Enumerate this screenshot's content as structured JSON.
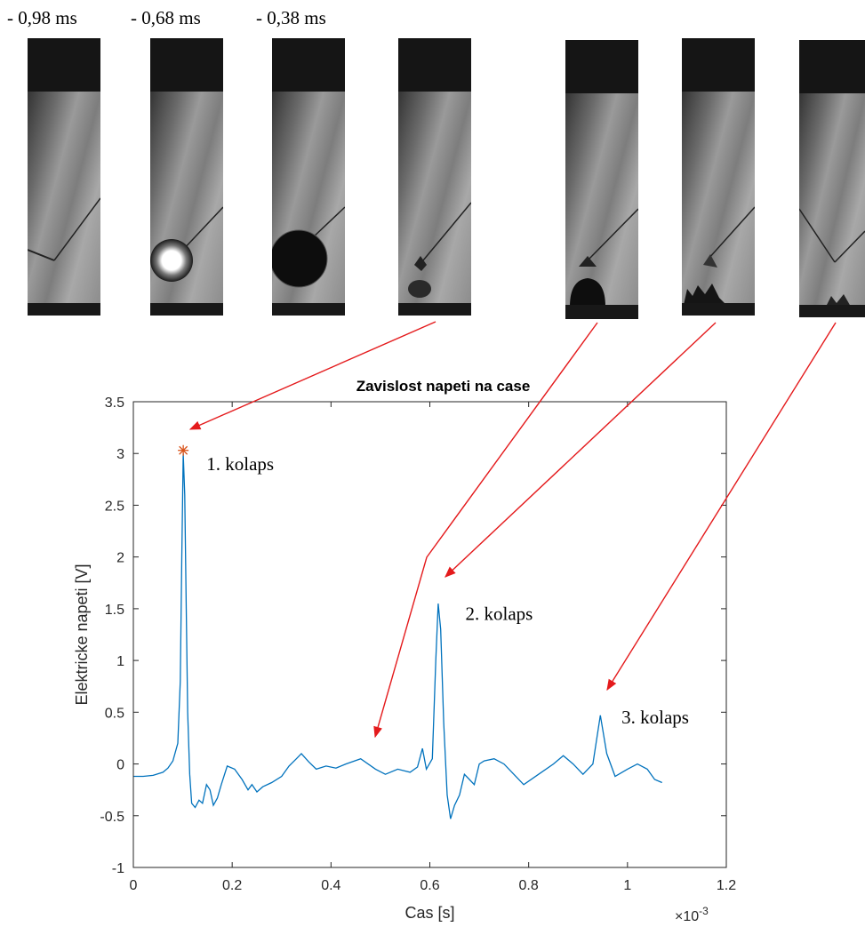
{
  "frames": {
    "captions": [
      "- 0,98 ms",
      "- 0,68 ms",
      "- 0,38 ms"
    ]
  },
  "chart_data": {
    "type": "line",
    "title": "Zavislost napeti na case",
    "xlabel": "Cas [s]",
    "ylabel": "Elektricke napeti [V]",
    "x_exponent_label": "×10",
    "x_exponent_power": "-3",
    "xlim": [
      0,
      1.2
    ],
    "ylim": [
      -1,
      3.5
    ],
    "xticks": [
      0,
      0.2,
      0.4,
      0.6,
      0.8,
      1,
      1.2
    ],
    "xtick_labels": [
      "0",
      "0.2",
      "0.4",
      "0.6",
      "0.8",
      "1",
      "1.2"
    ],
    "yticks": [
      -1,
      -0.5,
      0,
      0.5,
      1,
      1.5,
      2,
      2.5,
      3,
      3.5
    ],
    "ytick_labels": [
      "-1",
      "-0.5",
      "0",
      "0.5",
      "1",
      "1.5",
      "2",
      "2.5",
      "3",
      "3.5"
    ],
    "line_color": "#0072bd",
    "marker_color": "#d95319",
    "arrow_color": "#e41a1c",
    "series": [
      {
        "points": [
          [
            0,
            -0.12
          ],
          [
            0.02,
            -0.12
          ],
          [
            0.04,
            -0.11
          ],
          [
            0.06,
            -0.08
          ],
          [
            0.07,
            -0.04
          ],
          [
            0.08,
            0.03
          ],
          [
            0.09,
            0.2
          ],
          [
            0.095,
            0.8
          ],
          [
            0.098,
            2.0
          ],
          [
            0.101,
            3.0
          ],
          [
            0.104,
            2.6
          ],
          [
            0.107,
            1.5
          ],
          [
            0.11,
            0.5
          ],
          [
            0.114,
            -0.1
          ],
          [
            0.118,
            -0.38
          ],
          [
            0.125,
            -0.42
          ],
          [
            0.133,
            -0.35
          ],
          [
            0.14,
            -0.38
          ],
          [
            0.148,
            -0.2
          ],
          [
            0.155,
            -0.25
          ],
          [
            0.162,
            -0.4
          ],
          [
            0.17,
            -0.33
          ],
          [
            0.178,
            -0.2
          ],
          [
            0.19,
            -0.02
          ],
          [
            0.205,
            -0.05
          ],
          [
            0.22,
            -0.15
          ],
          [
            0.232,
            -0.25
          ],
          [
            0.24,
            -0.2
          ],
          [
            0.25,
            -0.27
          ],
          [
            0.262,
            -0.22
          ],
          [
            0.28,
            -0.18
          ],
          [
            0.3,
            -0.12
          ],
          [
            0.315,
            -0.02
          ],
          [
            0.33,
            0.05
          ],
          [
            0.34,
            0.1
          ],
          [
            0.355,
            0.02
          ],
          [
            0.37,
            -0.05
          ],
          [
            0.39,
            -0.02
          ],
          [
            0.41,
            -0.04
          ],
          [
            0.43,
            0.0
          ],
          [
            0.46,
            0.05
          ],
          [
            0.49,
            -0.05
          ],
          [
            0.51,
            -0.1
          ],
          [
            0.535,
            -0.05
          ],
          [
            0.56,
            -0.08
          ],
          [
            0.575,
            -0.03
          ],
          [
            0.585,
            0.15
          ],
          [
            0.593,
            -0.05
          ],
          [
            0.605,
            0.05
          ],
          [
            0.612,
            1.0
          ],
          [
            0.617,
            1.55
          ],
          [
            0.622,
            1.3
          ],
          [
            0.628,
            0.4
          ],
          [
            0.635,
            -0.3
          ],
          [
            0.642,
            -0.53
          ],
          [
            0.65,
            -0.4
          ],
          [
            0.66,
            -0.3
          ],
          [
            0.67,
            -0.1
          ],
          [
            0.68,
            -0.15
          ],
          [
            0.69,
            -0.2
          ],
          [
            0.7,
            0.0
          ],
          [
            0.71,
            0.03
          ],
          [
            0.73,
            0.05
          ],
          [
            0.75,
            0.0
          ],
          [
            0.77,
            -0.1
          ],
          [
            0.79,
            -0.2
          ],
          [
            0.82,
            -0.1
          ],
          [
            0.85,
            0.0
          ],
          [
            0.87,
            0.08
          ],
          [
            0.89,
            0.0
          ],
          [
            0.91,
            -0.1
          ],
          [
            0.93,
            0.0
          ],
          [
            0.945,
            0.47
          ],
          [
            0.958,
            0.1
          ],
          [
            0.975,
            -0.12
          ],
          [
            1.0,
            -0.05
          ],
          [
            1.02,
            0.0
          ],
          [
            1.04,
            -0.05
          ],
          [
            1.055,
            -0.15
          ],
          [
            1.07,
            -0.18
          ]
        ]
      }
    ],
    "peak_marker": [
      0.101,
      3.03
    ],
    "annotations": [
      {
        "text": "1. kolaps",
        "x": 0.148,
        "y": 2.9
      },
      {
        "text": "2. kolaps",
        "x": 0.672,
        "y": 1.45
      },
      {
        "text": "3. kolaps",
        "x": 0.988,
        "y": 0.45
      }
    ]
  }
}
